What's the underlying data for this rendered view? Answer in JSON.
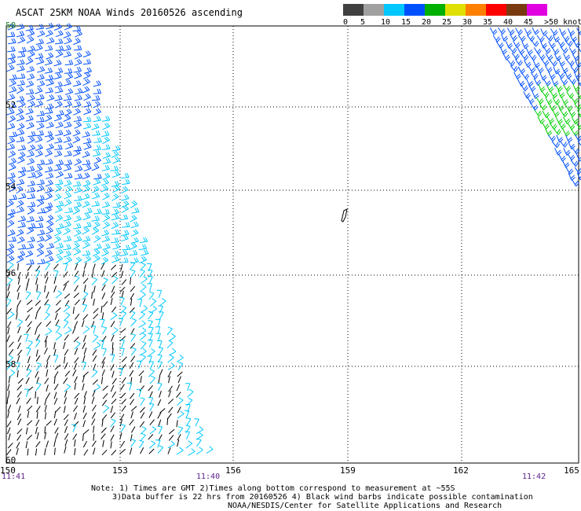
{
  "title": "ASCAT 25KM NOAA Winds 20160526 ascending",
  "legend": {
    "bins": [
      {
        "label": "0",
        "color": "#404040"
      },
      {
        "label": "5",
        "color": "#a0a0a0"
      },
      {
        "label": "10",
        "color": "#00c8ff"
      },
      {
        "label": "15",
        "color": "#0050ff"
      },
      {
        "label": "20",
        "color": "#00b000"
      },
      {
        "label": "25",
        "color": "#e0e000"
      },
      {
        "label": "30",
        "color": "#ff8000"
      },
      {
        "label": "35",
        "color": "#ff0000"
      },
      {
        "label": "40",
        "color": "#7a3a10"
      },
      {
        "label": "45",
        "color": "#e000e0"
      },
      {
        "label": ">50 knots",
        "color": "#5000a0"
      }
    ]
  },
  "longitudes": [
    "150",
    "153",
    "156",
    "159",
    "162",
    "165"
  ],
  "latitudes": [
    "50",
    "52",
    "54",
    "56",
    "58",
    "60"
  ],
  "times": [
    "11:41",
    "11:40",
    "11:42"
  ],
  "notes": {
    "line1": "Note: 1) Times are GMT 2)Times along bottom correspond to measurement at ~55S",
    "line2": "3)Data buffer is 22 hrs from 20160526 4) Black wind barbs indicate possible contamination",
    "line3": "NOAA/NESDIS/Center for Satellite Applications and Research"
  },
  "colors": {
    "barb_dark_blue": "#0050ff",
    "barb_cyan": "#00c8ff",
    "barb_green": "#00d000",
    "barb_black": "#000000",
    "grid": "#000000"
  }
}
